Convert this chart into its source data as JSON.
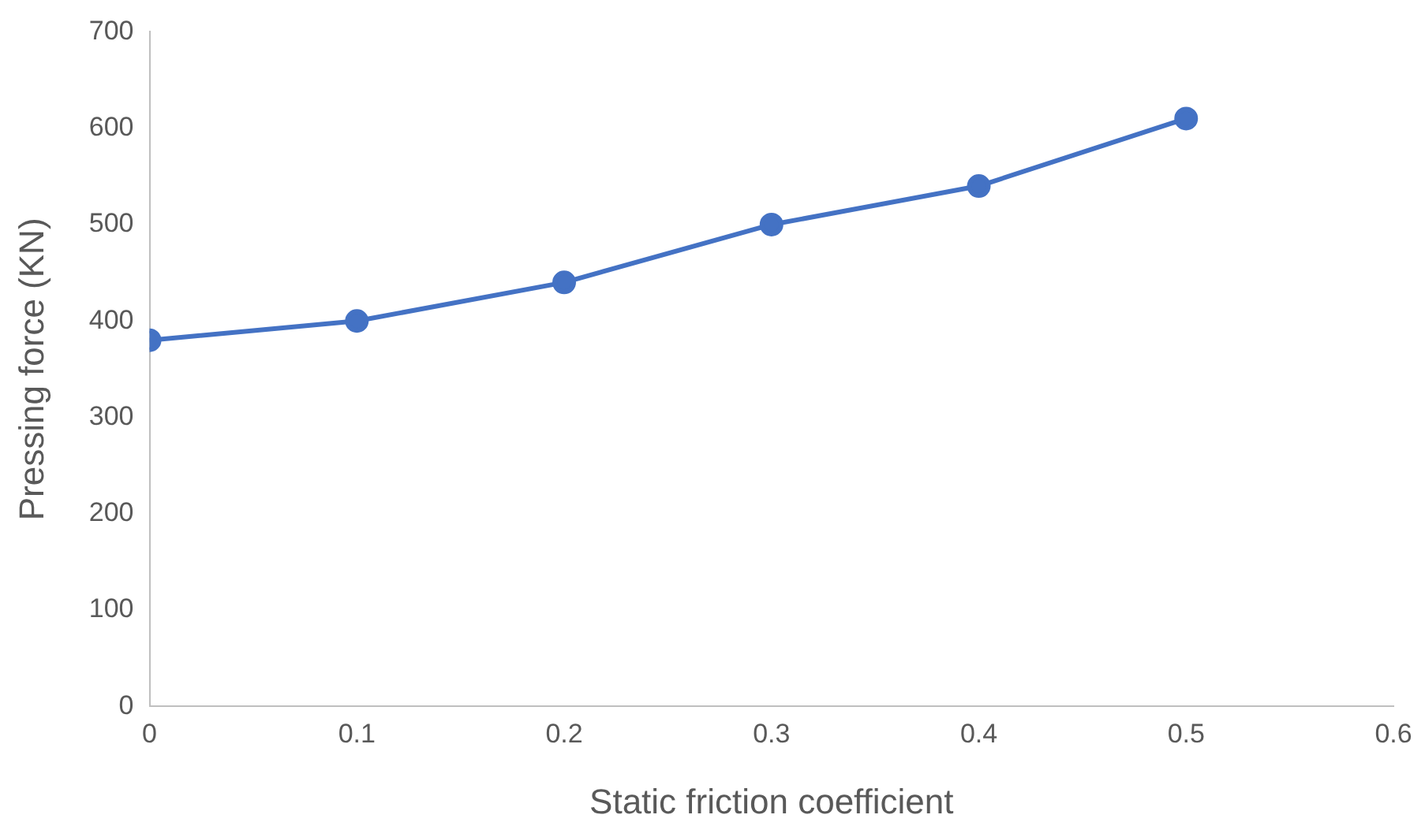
{
  "chart_data": {
    "type": "line",
    "xlabel": "Static friction coefficient",
    "ylabel": "Pressing force (KN)",
    "x": [
      0,
      0.1,
      0.2,
      0.3,
      0.4,
      0.5
    ],
    "series": [
      {
        "color": "#4472c4",
        "values": [
          380,
          400,
          440,
          500,
          540,
          610
        ]
      }
    ],
    "xlim": [
      0,
      0.6
    ],
    "xticks": [
      0,
      0.1,
      0.2,
      0.3,
      0.4,
      0.5,
      0.6
    ],
    "ylim": [
      0,
      700
    ],
    "yticks": [
      0,
      100,
      200,
      300,
      400,
      500,
      600,
      700
    ],
    "grid": false,
    "legend": false,
    "marker": "circle",
    "line_style": "solid"
  }
}
